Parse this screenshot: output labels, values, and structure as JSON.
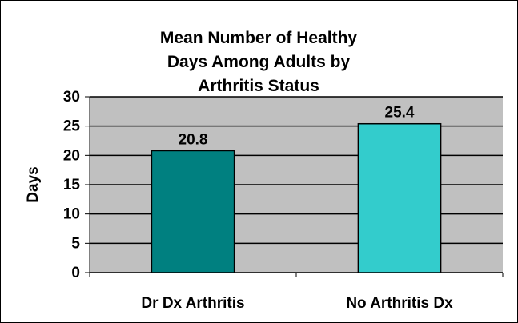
{
  "chart_data": {
    "type": "bar",
    "title": "Mean Number of Healthy Days Among Adults by Arthritis Status",
    "y_label": "Days",
    "categories": [
      "Dr Dx Arthritis",
      "No Arthritis Dx"
    ],
    "values": [
      20.8,
      25.4
    ],
    "colors": [
      "#008080",
      "#33cccc"
    ],
    "ylim": [
      0,
      30
    ],
    "yticks": [
      0,
      5,
      10,
      15,
      20,
      25,
      30
    ],
    "grid": true
  }
}
